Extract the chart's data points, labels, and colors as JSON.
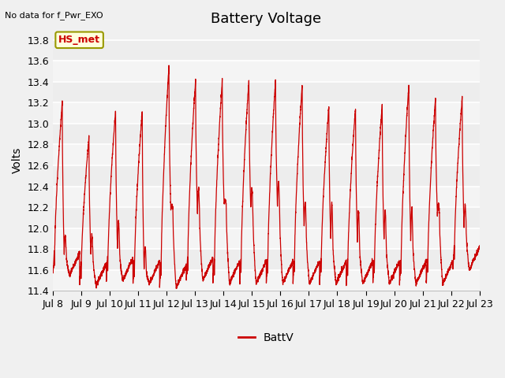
{
  "title": "Battery Voltage",
  "ylabel": "Volts",
  "top_left_text": "No data for f_Pwr_EXO",
  "legend_label": "BattV",
  "line_color": "#cc0000",
  "annotation_label": "HS_met",
  "annotation_color": "#cc0000",
  "annotation_bg": "#ffffdd",
  "annotation_border": "#999900",
  "ylim": [
    11.4,
    13.9
  ],
  "yticks": [
    11.4,
    11.6,
    11.8,
    12.0,
    12.2,
    12.4,
    12.6,
    12.8,
    13.0,
    13.2,
    13.4,
    13.6,
    13.8
  ],
  "xtick_labels": [
    "Jul 8",
    "Jul 9",
    "Jul 10",
    "Jul 11",
    "Jul 12",
    "Jul 13",
    "Jul 14",
    "Jul 15",
    "Jul 16",
    "Jul 17",
    "Jul 18",
    "Jul 19",
    "Jul 20",
    "Jul 21",
    "Jul 22",
    "Jul 23"
  ],
  "bg_color": "#f0f0f0",
  "grid_color": "#ffffff",
  "title_fontsize": 13,
  "axis_fontsize": 10,
  "tick_fontsize": 9,
  "day_data": [
    {
      "peak": 13.2,
      "low": 11.55,
      "mid_peak": 11.93,
      "mid_low": 11.75
    },
    {
      "peak": 12.87,
      "low": 11.45,
      "mid_peak": 11.93,
      "mid_low": 11.75
    },
    {
      "peak": 13.13,
      "low": 11.5,
      "mid_peak": 12.06,
      "mid_low": 11.8
    },
    {
      "peak": 13.12,
      "low": 11.47,
      "mid_peak": 11.82,
      "mid_low": 11.6
    },
    {
      "peak": 13.55,
      "low": 11.43,
      "mid_peak": 12.22,
      "mid_low": 12.18
    },
    {
      "peak": 13.42,
      "low": 11.5,
      "mid_peak": 12.38,
      "mid_low": 12.13
    },
    {
      "peak": 13.42,
      "low": 11.47,
      "mid_peak": 12.27,
      "mid_low": 12.22
    },
    {
      "peak": 13.42,
      "low": 11.47,
      "mid_peak": 12.38,
      "mid_low": 12.18
    },
    {
      "peak": 13.42,
      "low": 11.47,
      "mid_peak": 12.45,
      "mid_low": 12.2
    },
    {
      "peak": 13.38,
      "low": 11.47,
      "mid_peak": 12.25,
      "mid_low": 12.0
    },
    {
      "peak": 13.17,
      "low": 11.47,
      "mid_peak": 12.25,
      "mid_low": 11.87
    },
    {
      "peak": 13.15,
      "low": 11.47,
      "mid_peak": 12.17,
      "mid_low": 11.87
    },
    {
      "peak": 13.18,
      "low": 11.47,
      "mid_peak": 12.18,
      "mid_low": 11.87
    },
    {
      "peak": 13.38,
      "low": 11.47,
      "mid_peak": 12.2,
      "mid_low": 11.87
    },
    {
      "peak": 13.25,
      "low": 11.47,
      "mid_peak": 12.23,
      "mid_low": 12.12
    },
    {
      "peak": 13.25,
      "low": 11.6,
      "mid_peak": 12.22,
      "mid_low": 12.0
    }
  ]
}
